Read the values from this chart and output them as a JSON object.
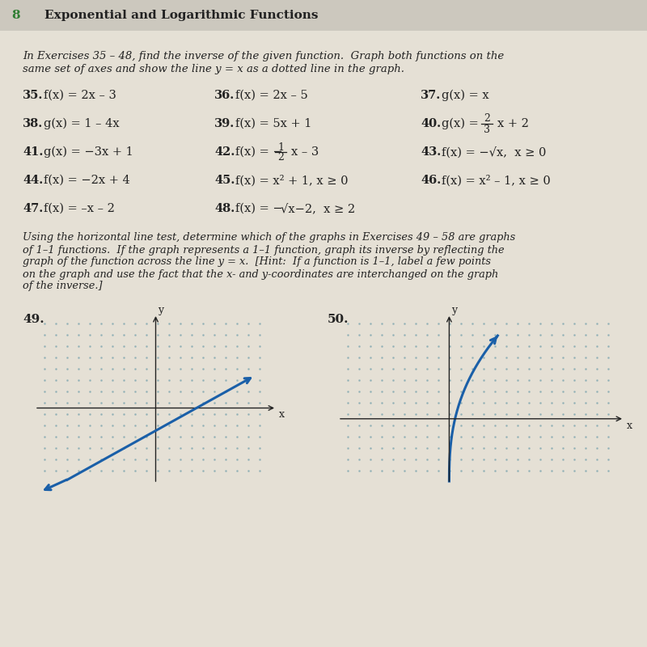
{
  "page_number": "8",
  "chapter_title": "Exponential and Logarithmic Functions",
  "intro_line1": "In Exercises 35 – 48, find the inverse of the given function.  Graph both functions on the",
  "intro_line2": "same set of axes and show the line y = x as a dotted line in the graph.",
  "ex35": {
    "num": "35.",
    "text": "f(x) = 2x – 3"
  },
  "ex36": {
    "num": "36.",
    "text": "f(x) = 2x – 5"
  },
  "ex37": {
    "num": "37.",
    "text": "g(x) = x"
  },
  "ex38": {
    "num": "38.",
    "text": "g(x) = 1 – 4x"
  },
  "ex39": {
    "num": "39.",
    "text": "f(x) = 5x + 1"
  },
  "ex41": {
    "num": "41.",
    "text": "g(x) = −3x + 1"
  },
  "ex43": {
    "num": "43.",
    "text": "f(x) = −√x,  x ≥ 0"
  },
  "ex44": {
    "num": "44.",
    "text": "f(x) = −2x + 4"
  },
  "ex45": {
    "num": "45.",
    "text": "f(x) = x² + 1, x ≥ 0"
  },
  "ex46": {
    "num": "46.",
    "text": "f(x) = x² – 1, x ≥ 0"
  },
  "ex47": {
    "num": "47.",
    "text": "f(x) = –x – 2"
  },
  "sec2_line1": "Using the horizontal line test, determine which of the graphs in Exercises 49 – 58 are graphs",
  "sec2_line2": "of 1–1 functions.  If the graph represents a 1–1 function, graph its inverse by reflecting the",
  "sec2_line3": "graph of the function across the line y = x.  [Hint:  If a function is 1–1, label a few points",
  "sec2_line4": "on the graph and use the fact that the x- and y-coordinates are interchanged on the graph",
  "sec2_line5": "of the inverse.]",
  "graph49_label": "49.",
  "graph50_label": "50.",
  "bg_color": "#e5e0d5",
  "header_bg": "#ccc8be",
  "text_color": "#222222",
  "green_color": "#2e7d32",
  "grid_color": "#8aacb4",
  "line_color": "#1a5fa8"
}
